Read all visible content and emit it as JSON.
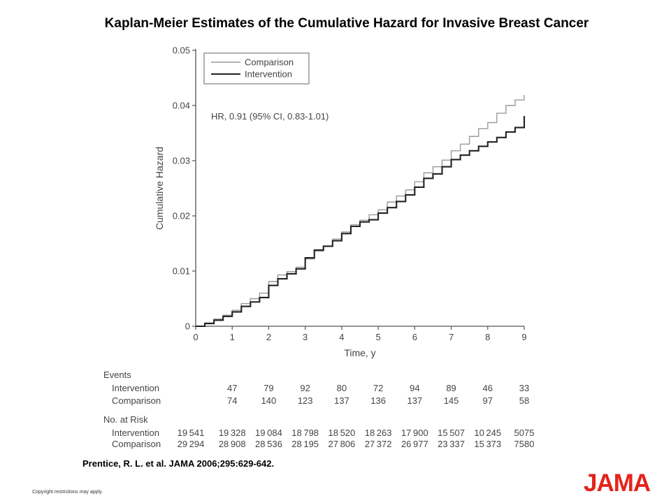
{
  "page": {
    "title": "Kaplan-Meier Estimates of the Cumulative Hazard for Invasive Breast Cancer",
    "citation": "Prentice, R. L. et al. JAMA 2006;295:629-642.",
    "copyright": "Copyright restrictions may apply.",
    "logo": "JAMA",
    "logo_color": "#e4231b"
  },
  "chart_data": {
    "type": "line",
    "xlabel": "Time, y",
    "ylabel": "Cumulative Hazard",
    "xlim": [
      0,
      9
    ],
    "ylim": [
      0,
      0.05
    ],
    "x_ticks": [
      "0",
      "1",
      "2",
      "3",
      "4",
      "5",
      "6",
      "7",
      "8",
      "9"
    ],
    "y_ticks": [
      "0",
      "0.01",
      "0.02",
      "0.03",
      "0.04",
      "0.05"
    ],
    "grid": false,
    "legend_position": "top-left",
    "annotation": "HR, 0.91 (95% CI, 0.83-1.01)",
    "series": [
      {
        "name": "Comparison",
        "color": "#9a9a9a",
        "x": [
          0,
          0.25,
          0.5,
          0.75,
          1,
          1.25,
          1.5,
          1.75,
          2,
          2.25,
          2.5,
          2.75,
          3,
          3.25,
          3.5,
          3.75,
          4,
          4.25,
          4.5,
          4.75,
          5,
          5.25,
          5.5,
          5.75,
          6,
          6.25,
          6.5,
          6.75,
          7,
          7.25,
          7.5,
          7.75,
          8,
          8.25,
          8.5,
          8.75,
          9
        ],
        "y": [
          0,
          0.0006,
          0.0013,
          0.002,
          0.0029,
          0.0041,
          0.005,
          0.006,
          0.0081,
          0.0093,
          0.0099,
          0.0107,
          0.0122,
          0.0136,
          0.0145,
          0.0158,
          0.0171,
          0.0184,
          0.0192,
          0.0202,
          0.0211,
          0.0225,
          0.0236,
          0.0247,
          0.0262,
          0.0278,
          0.0289,
          0.0301,
          0.0318,
          0.033,
          0.0344,
          0.0358,
          0.0369,
          0.0386,
          0.04,
          0.041,
          0.0419
        ]
      },
      {
        "name": "Intervention",
        "color": "#222222",
        "x": [
          0,
          0.25,
          0.5,
          0.75,
          1,
          1.25,
          1.5,
          1.75,
          2,
          2.25,
          2.5,
          2.75,
          3,
          3.25,
          3.5,
          3.75,
          4,
          4.25,
          4.5,
          4.75,
          5,
          5.25,
          5.5,
          5.75,
          6,
          6.25,
          6.5,
          6.75,
          7,
          7.25,
          7.5,
          7.75,
          8,
          8.25,
          8.5,
          8.75,
          9
        ],
        "y": [
          0,
          0.0005,
          0.0011,
          0.0018,
          0.0026,
          0.0036,
          0.0044,
          0.0052,
          0.0074,
          0.0086,
          0.0095,
          0.0104,
          0.0124,
          0.0138,
          0.0145,
          0.0155,
          0.0168,
          0.0181,
          0.0189,
          0.0193,
          0.0205,
          0.0215,
          0.0226,
          0.0238,
          0.0252,
          0.0268,
          0.0276,
          0.0289,
          0.0302,
          0.031,
          0.0318,
          0.0326,
          0.0334,
          0.0342,
          0.0352,
          0.036,
          0.0381
        ]
      }
    ]
  },
  "table": {
    "events_header": "Events",
    "at_risk_header": "No. at Risk",
    "events": [
      {
        "label": "Intervention",
        "values": [
          "",
          "47",
          "79",
          "92",
          "80",
          "72",
          "94",
          "89",
          "46",
          "33"
        ]
      },
      {
        "label": "Comparison",
        "values": [
          "",
          "74",
          "140",
          "123",
          "137",
          "136",
          "137",
          "145",
          "97",
          "58"
        ]
      }
    ],
    "at_risk": [
      {
        "label": "Intervention",
        "values": [
          "19541",
          "19328",
          "19084",
          "18798",
          "18520",
          "18263",
          "17900",
          "15507",
          "10245",
          "5075"
        ]
      },
      {
        "label": "Comparison",
        "values": [
          "29294",
          "28908",
          "28536",
          "28195",
          "27806",
          "27372",
          "26977",
          "23337",
          "15373",
          "7580"
        ]
      }
    ]
  }
}
